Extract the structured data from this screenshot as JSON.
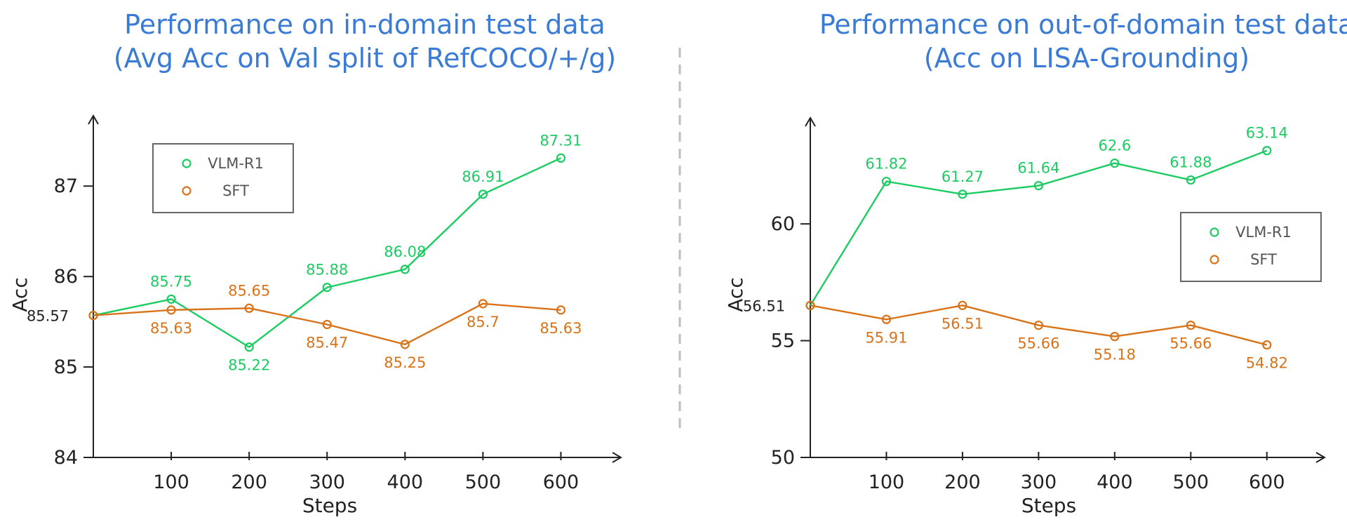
{
  "chart_data": [
    {
      "type": "line",
      "title": "Performance on in-domain test data",
      "subtitle": "(Avg Acc on Val split of RefCOCO/+/g)",
      "xlabel": "Steps",
      "ylabel": "Acc",
      "x": [
        0,
        100,
        200,
        300,
        400,
        500,
        600
      ],
      "x_tick_labels": [
        "100",
        "200",
        "300",
        "400",
        "500",
        "600"
      ],
      "xlim": [
        0,
        650
      ],
      "y_ticks": [
        84,
        85,
        86,
        87
      ],
      "ylim": [
        84,
        87.7
      ],
      "grid": false,
      "legend_position": "top-left",
      "start_label": "85.57",
      "series": [
        {
          "name": "VLM-R1",
          "color": "#1ccc63",
          "values": [
            85.57,
            85.75,
            85.22,
            85.88,
            86.08,
            86.91,
            87.31
          ],
          "point_labels": [
            "",
            "85.75",
            "85.22",
            "85.88",
            "86.08",
            "86.91",
            "87.31"
          ],
          "label_pos": [
            "",
            "above",
            "below",
            "above",
            "above",
            "above",
            "above"
          ]
        },
        {
          "name": "SFT",
          "color": "#d9731a",
          "values": [
            85.57,
            85.63,
            85.65,
            85.47,
            85.25,
            85.7,
            85.63
          ],
          "point_labels": [
            "",
            "85.63",
            "85.65",
            "85.47",
            "85.25",
            "85.7",
            "85.63"
          ],
          "label_pos": [
            "",
            "below",
            "above",
            "below",
            "below",
            "below",
            "below"
          ]
        }
      ]
    },
    {
      "type": "line",
      "title": "Performance on out-of-domain test data",
      "subtitle": "(Acc on LISA-Grounding)",
      "xlabel": "Steps",
      "ylabel": "Acc",
      "x": [
        0,
        100,
        200,
        300,
        400,
        500,
        600
      ],
      "x_tick_labels": [
        "100",
        "200",
        "300",
        "400",
        "500",
        "600"
      ],
      "xlim": [
        0,
        650
      ],
      "y_ticks": [
        50,
        55,
        60
      ],
      "ylim": [
        50,
        64.3
      ],
      "grid": false,
      "legend_position": "right",
      "start_label": "56.51",
      "series": [
        {
          "name": "VLM-R1",
          "color": "#1ccc63",
          "values": [
            56.51,
            61.82,
            61.27,
            61.64,
            62.6,
            61.88,
            63.14
          ],
          "point_labels": [
            "",
            "61.82",
            "61.27",
            "61.64",
            "62.6",
            "61.88",
            "63.14"
          ],
          "label_pos": [
            "",
            "above",
            "above",
            "above",
            "above",
            "above",
            "above"
          ]
        },
        {
          "name": "SFT",
          "color": "#d9731a",
          "values": [
            56.51,
            55.91,
            56.51,
            55.66,
            55.18,
            55.66,
            54.82
          ],
          "point_labels": [
            "",
            "55.91",
            "56.51",
            "55.66",
            "55.18",
            "55.66",
            "54.82"
          ],
          "label_pos": [
            "",
            "below",
            "below",
            "below",
            "below",
            "below",
            "below"
          ]
        }
      ]
    }
  ]
}
